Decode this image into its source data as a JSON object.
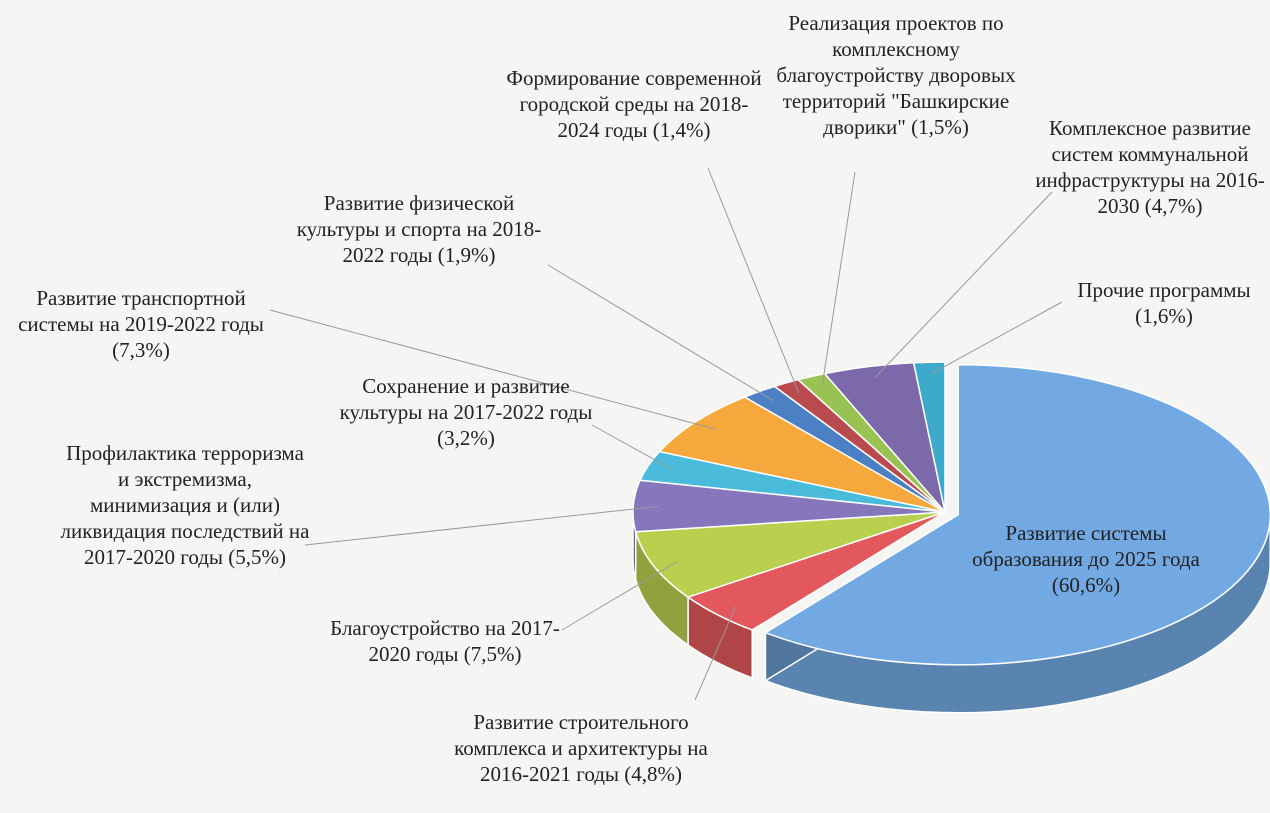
{
  "chart_data": {
    "type": "pie3d",
    "categories": [
      "Развитие системы образования до 2025 года",
      "Развитие строительного комплекса и архитектуры на 2016-2021 годы",
      "Благоустройство на 2017-2020 годы",
      "Профилактика терроризма и экстремизма, минимизация и (или) ликвидация последствий на 2017-2020 годы",
      "Сохранение и развитие культуры на 2017-2022 годы",
      "Развитие транспортной системы на 2019-2022 годы",
      "Развитие физической культуры и спорта на 2018-2022 годы",
      "Формирование современной городской среды на 2018-2024 годы",
      "Реализация проектов по комплексному благоустройству дворовых территорий \"Башкирские дворики\"",
      "Комплексное развитие систем коммунальной инфраструктуры на 2016-2030",
      "Прочие программы"
    ],
    "values": [
      60.6,
      4.8,
      7.5,
      5.5,
      3.2,
      7.3,
      1.9,
      1.4,
      1.5,
      4.7,
      1.6
    ],
    "value_labels": [
      "(60,6%)",
      "(4,8%)",
      "(7,5%)",
      "(5,5%)",
      "(3,2%)",
      "(7,3%)",
      "(1,9%)",
      "(1,4%)",
      "(1,5%)",
      "(4,7%)",
      "(1,6%)"
    ],
    "colors": [
      "#72a9e2",
      "#e2585c",
      "#b9d04e",
      "#8677bd",
      "#4bbbdb",
      "#f6a83c",
      "#4b80c4",
      "#b94b4e",
      "#98c352",
      "#7b69aa",
      "#3eaacb"
    ]
  }
}
